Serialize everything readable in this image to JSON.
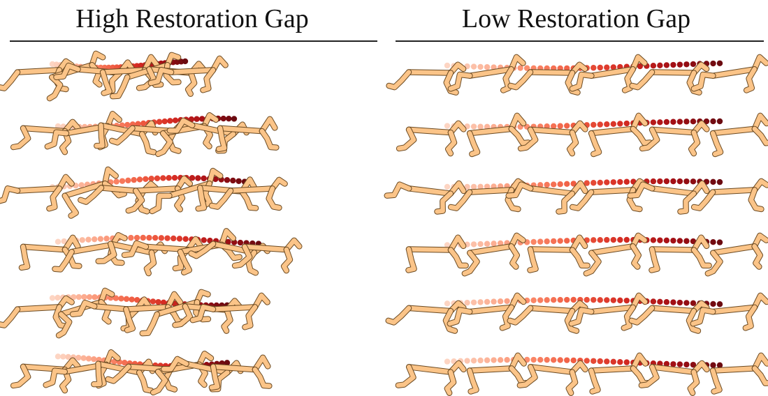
{
  "panels": {
    "left": {
      "title": "High Restoration Gap"
    },
    "right": {
      "title": "Low Restoration Gap"
    }
  },
  "colors": {
    "body_fill": "#fbc488",
    "body_stroke": "#6b4a22",
    "trajectory_gradient": [
      "#fde0d2",
      "#fcbba1",
      "#fb8a6a",
      "#ef5a40",
      "#d42a22",
      "#a50f15",
      "#6b0a10"
    ]
  },
  "rollouts": {
    "left": {
      "count": 6,
      "agent": "half-cheetah",
      "trajectory": "compressed"
    },
    "right": {
      "count": 6,
      "agent": "half-cheetah",
      "trajectory": "extended"
    }
  }
}
